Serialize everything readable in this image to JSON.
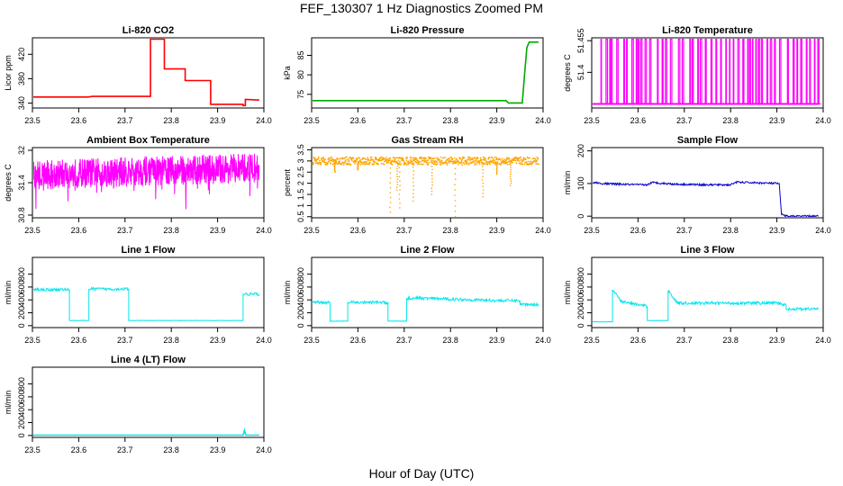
{
  "title": "FEF_130307  1 Hz Diagnostics Zoomed PM",
  "xlabel": "Hour of Day (UTC)",
  "chart_data": [
    {
      "type": "line",
      "title": "Li-820 CO2",
      "ylabel": "Licor ppm",
      "color": "#ff0000",
      "xlim": [
        23.5,
        24.0
      ],
      "ylim": [
        332,
        447
      ],
      "xticks": [
        23.5,
        23.6,
        23.7,
        23.8,
        23.9,
        24.0
      ],
      "yticks": [
        340,
        380,
        420
      ],
      "series": [
        {
          "x": [
            23.5,
            23.62,
            23.63,
            23.755,
            23.755,
            23.785,
            23.785,
            23.83,
            23.83,
            23.885,
            23.885,
            23.955,
            23.955,
            23.96,
            23.96,
            23.99
          ],
          "y": [
            350,
            350,
            351,
            351,
            445,
            445,
            396,
            396,
            377,
            377,
            338,
            338,
            336,
            336,
            346,
            345
          ]
        }
      ]
    },
    {
      "type": "line",
      "title": "Li-820 Pressure",
      "ylabel": "kPa",
      "color": "#00aa00",
      "xlim": [
        23.5,
        24.0
      ],
      "ylim": [
        71.5,
        89.5
      ],
      "xticks": [
        23.5,
        23.6,
        23.7,
        23.8,
        23.9,
        24.0
      ],
      "yticks": [
        75,
        80,
        85
      ],
      "series": [
        {
          "x": [
            23.5,
            23.92,
            23.925,
            23.955,
            23.96,
            23.965,
            23.97,
            23.99
          ],
          "y": [
            73.4,
            73.4,
            72.8,
            72.8,
            80,
            87,
            88.4,
            88.4
          ]
        }
      ]
    },
    {
      "type": "line",
      "title": "Li-820 Temperature",
      "ylabel": "degrees C",
      "color": "#ff00ff",
      "xlim": [
        23.5,
        24.0
      ],
      "ylim": [
        51.338,
        51.46
      ],
      "xticks": [
        23.5,
        23.6,
        23.7,
        23.8,
        23.9,
        24.0
      ],
      "yticks": [
        51.4,
        51.455
      ],
      "series": [
        {
          "x": [
            23.5,
            23.99
          ],
          "y": [
            51.345,
            51.345
          ]
        }
      ]
    },
    {
      "type": "line",
      "title": "Ambient Box Temperature",
      "ylabel": "degrees C",
      "color": "#ff00ff",
      "xlim": [
        23.5,
        24.0
      ],
      "ylim": [
        30.75,
        32.05
      ],
      "xticks": [
        23.5,
        23.6,
        23.7,
        23.8,
        23.9,
        24.0
      ],
      "yticks": [
        30.8,
        31.4,
        32.0
      ],
      "series": [
        {
          "x": [
            23.5,
            23.99
          ],
          "y": [
            31.55,
            31.7
          ]
        }
      ]
    },
    {
      "type": "scatter",
      "title": "Gas Stream RH",
      "ylabel": "percent",
      "color": "#ffa500",
      "xlim": [
        23.5,
        24.0
      ],
      "ylim": [
        0.45,
        3.6
      ],
      "xticks": [
        23.5,
        23.6,
        23.7,
        23.8,
        23.9,
        24.0
      ],
      "yticks": [
        0.5,
        1.0,
        1.5,
        2.0,
        2.5,
        3.0,
        3.5
      ],
      "series": [
        {
          "x": [
            23.5,
            23.99
          ],
          "y": [
            3.0,
            3.0
          ]
        }
      ]
    },
    {
      "type": "line",
      "title": "Sample Flow",
      "ylabel": "ml/min",
      "color": "#0000cc",
      "xlim": [
        23.5,
        24.0
      ],
      "ylim": [
        -5,
        210
      ],
      "xticks": [
        23.5,
        23.6,
        23.7,
        23.8,
        23.9,
        24.0
      ],
      "yticks": [
        0,
        100,
        200
      ],
      "series": [
        {
          "x": [
            23.5,
            23.505,
            23.52,
            23.6,
            23.62,
            23.63,
            23.68,
            23.75,
            23.8,
            23.81,
            23.86,
            23.905,
            23.91,
            23.92,
            23.99
          ],
          "y": [
            98,
            104,
            100,
            96,
            96,
            103,
            98,
            96,
            96,
            104,
            102,
            100,
            5,
            0,
            0
          ]
        }
      ]
    },
    {
      "type": "line",
      "title": "Line 1 Flow",
      "ylabel": "ml/min",
      "color": "#00e5ee",
      "xlim": [
        23.5,
        24.0
      ],
      "ylim": [
        -30,
        1060
      ],
      "xticks": [
        23.5,
        23.6,
        23.7,
        23.8,
        23.9,
        24.0
      ],
      "yticks": [
        0,
        200,
        400,
        600,
        800
      ],
      "series": [
        {
          "x": [
            23.5,
            23.5,
            23.503,
            23.58,
            23.58,
            23.622,
            23.622,
            23.708,
            23.708,
            23.955,
            23.955,
            23.99
          ],
          "y": [
            60,
            560,
            560,
            560,
            80,
            80,
            570,
            570,
            80,
            80,
            490,
            490
          ]
        }
      ]
    },
    {
      "type": "line",
      "title": "Line 2 Flow",
      "ylabel": "ml/min",
      "color": "#00e5ee",
      "xlim": [
        23.5,
        24.0
      ],
      "ylim": [
        -30,
        1060
      ],
      "xticks": [
        23.5,
        23.6,
        23.7,
        23.8,
        23.9,
        24.0
      ],
      "yticks": [
        0,
        200,
        400,
        600,
        800
      ],
      "series": [
        {
          "x": [
            23.5,
            23.54,
            23.54,
            23.578,
            23.578,
            23.665,
            23.665,
            23.705,
            23.705,
            23.72,
            23.9,
            23.95,
            23.95,
            23.99
          ],
          "y": [
            360,
            360,
            70,
            70,
            360,
            360,
            70,
            70,
            420,
            430,
            390,
            390,
            330,
            330
          ]
        }
      ]
    },
    {
      "type": "line",
      "title": "Line 3 Flow",
      "ylabel": "ml/min",
      "color": "#00e5ee",
      "xlim": [
        23.5,
        24.0
      ],
      "ylim": [
        -30,
        1060
      ],
      "xticks": [
        23.5,
        23.6,
        23.7,
        23.8,
        23.9,
        24.0
      ],
      "yticks": [
        0,
        200,
        400,
        600,
        800
      ],
      "series": [
        {
          "x": [
            23.5,
            23.5,
            23.545,
            23.545,
            23.565,
            23.62,
            23.62,
            23.665,
            23.665,
            23.685,
            23.9,
            23.92,
            23.92,
            23.99
          ],
          "y": [
            60,
            60,
            60,
            550,
            370,
            300,
            80,
            80,
            550,
            350,
            350,
            320,
            260,
            260
          ]
        }
      ]
    },
    {
      "type": "line",
      "title": "Line 4 (LT) Flow",
      "ylabel": "ml/min",
      "color": "#00e5ee",
      "xlim": [
        23.5,
        24.0
      ],
      "ylim": [
        -30,
        1060
      ],
      "xticks": [
        23.5,
        23.6,
        23.7,
        23.8,
        23.9,
        24.0
      ],
      "yticks": [
        0,
        200,
        400,
        600,
        800
      ],
      "series": [
        {
          "x": [
            23.5,
            23.955,
            23.958,
            23.961,
            23.99
          ],
          "y": [
            5,
            5,
            80,
            5,
            5
          ]
        }
      ]
    }
  ]
}
